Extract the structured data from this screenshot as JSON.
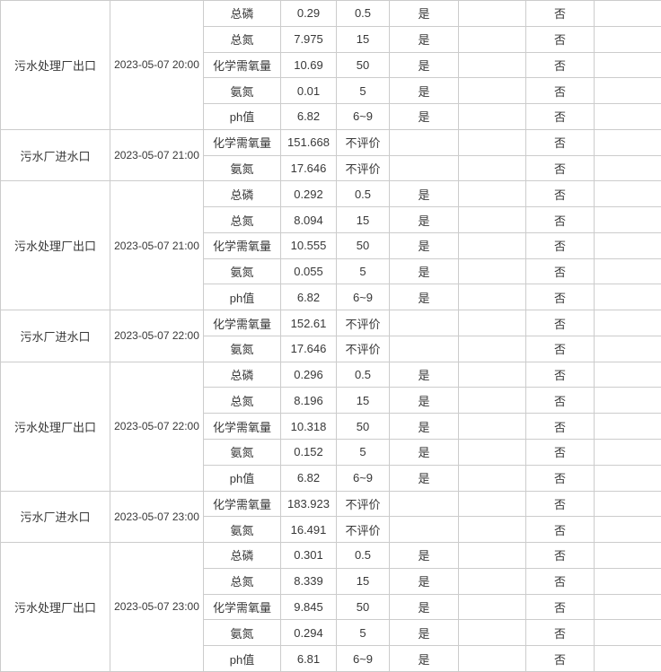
{
  "table": {
    "column_semantics": {
      "col1": "monitoring-location",
      "col2": "timestamp",
      "col3": "parameter-name",
      "col4": "measured-value",
      "col5": "limit-standard",
      "col6": "compliant-flag",
      "col7": "empty",
      "col8": "exceed-flag",
      "col9": "empty"
    },
    "groups": [
      {
        "location": "污水处理厂出口",
        "time": "2023-05-07 20:00",
        "rows": [
          {
            "param": "总磷",
            "value": "0.29",
            "limit": "0.5",
            "compliant": "是",
            "exceed": "否"
          },
          {
            "param": "总氮",
            "value": "7.975",
            "limit": "15",
            "compliant": "是",
            "exceed": "否"
          },
          {
            "param": "化学需氧量",
            "value": "10.69",
            "limit": "50",
            "compliant": "是",
            "exceed": "否"
          },
          {
            "param": "氨氮",
            "value": "0.01",
            "limit": "5",
            "compliant": "是",
            "exceed": "否"
          },
          {
            "param": "ph值",
            "value": "6.82",
            "limit": "6~9",
            "compliant": "是",
            "exceed": "否"
          }
        ]
      },
      {
        "location": "污水厂进水口",
        "time": "2023-05-07 21:00",
        "rows": [
          {
            "param": "化学需氧量",
            "value": "151.668",
            "limit": "不评价",
            "compliant": "",
            "exceed": "否"
          },
          {
            "param": "氨氮",
            "value": "17.646",
            "limit": "不评价",
            "compliant": "",
            "exceed": "否"
          }
        ]
      },
      {
        "location": "污水处理厂出口",
        "time": "2023-05-07 21:00",
        "rows": [
          {
            "param": "总磷",
            "value": "0.292",
            "limit": "0.5",
            "compliant": "是",
            "exceed": "否"
          },
          {
            "param": "总氮",
            "value": "8.094",
            "limit": "15",
            "compliant": "是",
            "exceed": "否"
          },
          {
            "param": "化学需氧量",
            "value": "10.555",
            "limit": "50",
            "compliant": "是",
            "exceed": "否"
          },
          {
            "param": "氨氮",
            "value": "0.055",
            "limit": "5",
            "compliant": "是",
            "exceed": "否"
          },
          {
            "param": "ph值",
            "value": "6.82",
            "limit": "6~9",
            "compliant": "是",
            "exceed": "否"
          }
        ]
      },
      {
        "location": "污水厂进水口",
        "time": "2023-05-07 22:00",
        "rows": [
          {
            "param": "化学需氧量",
            "value": "152.61",
            "limit": "不评价",
            "compliant": "",
            "exceed": "否"
          },
          {
            "param": "氨氮",
            "value": "17.646",
            "limit": "不评价",
            "compliant": "",
            "exceed": "否"
          }
        ]
      },
      {
        "location": "污水处理厂出口",
        "time": "2023-05-07 22:00",
        "rows": [
          {
            "param": "总磷",
            "value": "0.296",
            "limit": "0.5",
            "compliant": "是",
            "exceed": "否"
          },
          {
            "param": "总氮",
            "value": "8.196",
            "limit": "15",
            "compliant": "是",
            "exceed": "否"
          },
          {
            "param": "化学需氧量",
            "value": "10.318",
            "limit": "50",
            "compliant": "是",
            "exceed": "否"
          },
          {
            "param": "氨氮",
            "value": "0.152",
            "limit": "5",
            "compliant": "是",
            "exceed": "否"
          },
          {
            "param": "ph值",
            "value": "6.82",
            "limit": "6~9",
            "compliant": "是",
            "exceed": "否"
          }
        ]
      },
      {
        "location": "污水厂进水口",
        "time": "2023-05-07 23:00",
        "rows": [
          {
            "param": "化学需氧量",
            "value": "183.923",
            "limit": "不评价",
            "compliant": "",
            "exceed": "否"
          },
          {
            "param": "氨氮",
            "value": "16.491",
            "limit": "不评价",
            "compliant": "",
            "exceed": "否"
          }
        ]
      },
      {
        "location": "污水处理厂出口",
        "time": "2023-05-07 23:00",
        "rows": [
          {
            "param": "总磷",
            "value": "0.301",
            "limit": "0.5",
            "compliant": "是",
            "exceed": "否"
          },
          {
            "param": "总氮",
            "value": "8.339",
            "limit": "15",
            "compliant": "是",
            "exceed": "否"
          },
          {
            "param": "化学需氧量",
            "value": "9.845",
            "limit": "50",
            "compliant": "是",
            "exceed": "否"
          },
          {
            "param": "氨氮",
            "value": "0.294",
            "limit": "5",
            "compliant": "是",
            "exceed": "否"
          },
          {
            "param": "ph值",
            "value": "6.81",
            "limit": "6~9",
            "compliant": "是",
            "exceed": "否"
          }
        ]
      }
    ]
  }
}
